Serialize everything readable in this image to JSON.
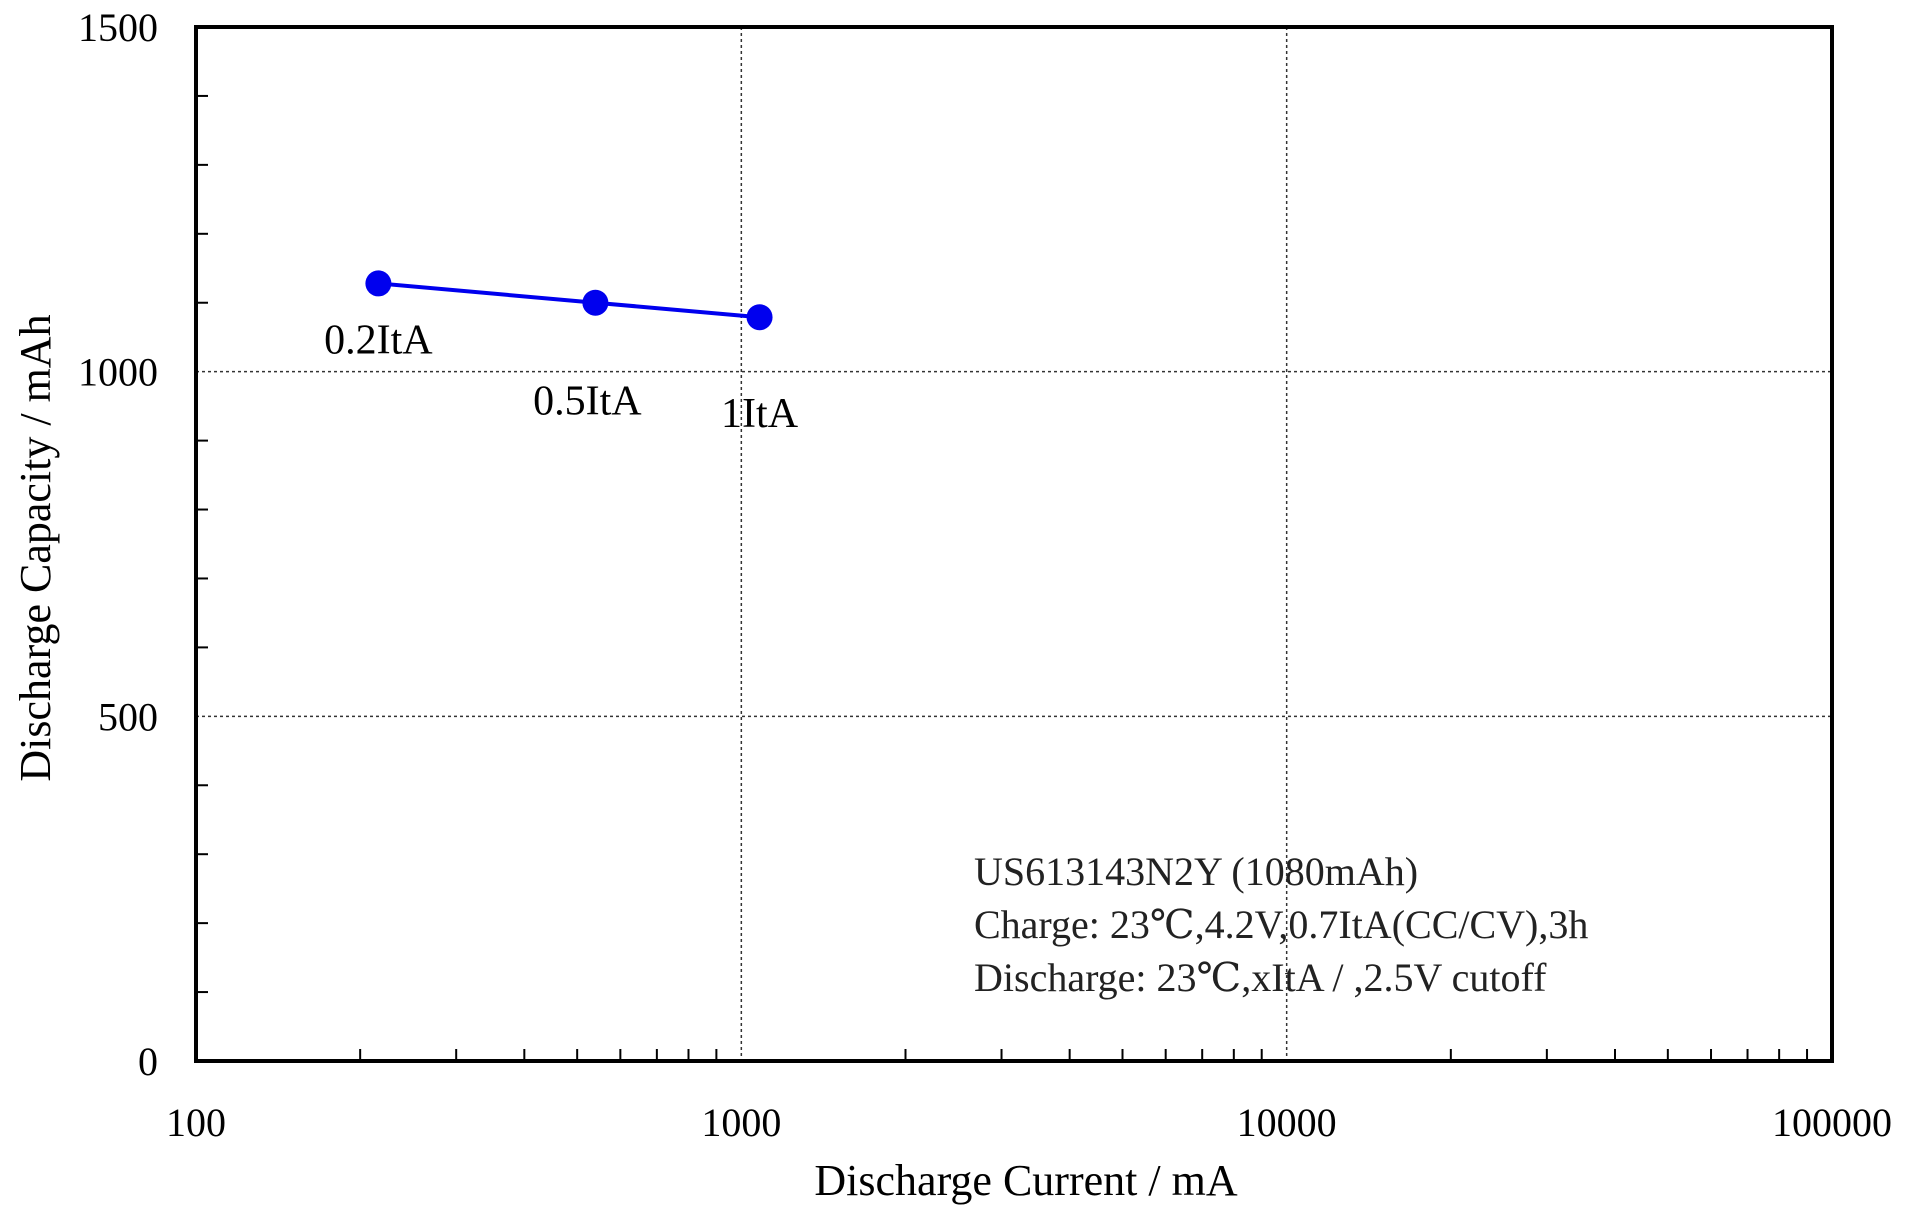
{
  "chart_data": {
    "type": "line",
    "title": "",
    "xlabel": "Discharge Current / mA",
    "ylabel": "Discharge Capacity / mAh",
    "x_scale": "log",
    "xlim": [
      100,
      100000
    ],
    "ylim": [
      0,
      1500
    ],
    "x_ticks": [
      "100",
      "1000",
      "10000",
      "100000"
    ],
    "y_ticks": [
      "0",
      "500",
      "1000",
      "1500"
    ],
    "grid": true,
    "series": [
      {
        "color": "#0000ee",
        "x": [
          216,
          540,
          1080
        ],
        "y": [
          1128,
          1100,
          1079
        ],
        "point_labels": [
          "0.2ItA",
          "0.5ItA",
          "1ItA"
        ]
      }
    ],
    "annotations": [
      "US613143N2Y (1080mAh)",
      "Charge: 23℃,4.2V,0.7ItA(CC/CV),3h",
      "Discharge: 23℃,xItA / ,2.5V cutoff"
    ]
  }
}
